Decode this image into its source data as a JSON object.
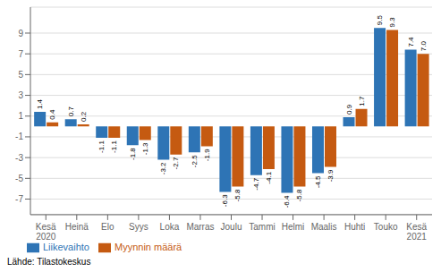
{
  "chart_data": {
    "type": "bar",
    "categories": [
      "Kesä\n2020",
      "Heinä",
      "Elo",
      "Syys",
      "Loka",
      "Marras",
      "Joulu",
      "Tammi",
      "Helmi",
      "Maalis",
      "Huhti",
      "Touko",
      "Kesä\n2021"
    ],
    "series": [
      {
        "name": "Liikevaihto",
        "color": "#2E74B5",
        "values": [
          1.4,
          0.7,
          -1.1,
          -1.8,
          -3.2,
          -2.5,
          -6.3,
          -4.7,
          -6.4,
          -4.5,
          0.9,
          9.5,
          7.4
        ]
      },
      {
        "name": "Myynnin määrä",
        "color": "#C55A11",
        "values": [
          0.4,
          0.2,
          -1.1,
          -1.3,
          -2.7,
          -1.9,
          -5.8,
          -4.1,
          -5.8,
          -3.9,
          1.7,
          9.3,
          7.0
        ],
        "value_labels": [
          "0.4",
          "0.2",
          "-1.1",
          "-1.3",
          "-2.7",
          "-1.9",
          "-5.8",
          "-4.1",
          "-5.8",
          "-3.9",
          "1.7",
          "9.3",
          "7.0"
        ]
      }
    ],
    "ylim": [
      -8.5,
      11.5
    ],
    "yticks": [
      -7,
      -5,
      -3,
      -1,
      1,
      3,
      5,
      7,
      9
    ],
    "grid": true,
    "legend": "lower left",
    "data_labels": true,
    "annotations": [
      "Lähde: Tilastokeskus"
    ]
  }
}
